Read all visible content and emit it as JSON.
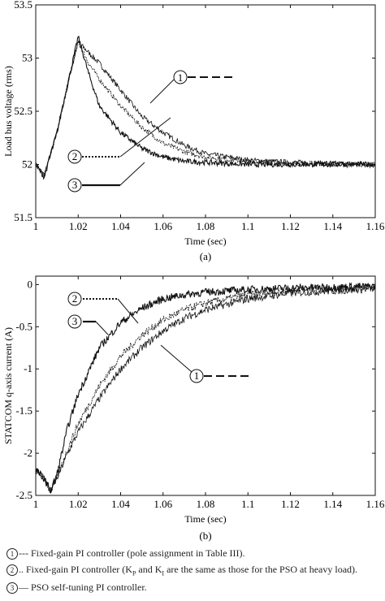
{
  "chart_data": [
    {
      "type": "line",
      "caption": "(a)",
      "xlabel": "Time (sec)",
      "ylabel": "Load bus voltage (rms)",
      "xlim": [
        1.0,
        1.16
      ],
      "ylim": [
        51.5,
        53.5
      ],
      "xticks": [
        "1",
        "1.02",
        "1.04",
        "1.06",
        "1.08",
        "1.1",
        "1.12",
        "1.14",
        "1.16"
      ],
      "yticks": [
        "51.5",
        "52",
        "52.5",
        "53",
        "53.5"
      ],
      "grid": false,
      "series": [
        {
          "name": "1",
          "x": [
            1.0,
            1.004,
            1.01,
            1.015,
            1.02,
            1.025,
            1.03,
            1.04,
            1.05,
            1.06,
            1.07,
            1.08,
            1.1,
            1.12,
            1.16
          ],
          "y": [
            52.0,
            51.9,
            52.3,
            52.75,
            53.15,
            53.05,
            52.95,
            52.7,
            52.45,
            52.3,
            52.18,
            52.1,
            52.04,
            52.02,
            52.0
          ]
        },
        {
          "name": "2",
          "x": [
            1.0,
            1.004,
            1.01,
            1.015,
            1.02,
            1.025,
            1.03,
            1.04,
            1.05,
            1.06,
            1.07,
            1.08,
            1.1,
            1.12,
            1.16
          ],
          "y": [
            52.0,
            51.9,
            52.3,
            52.75,
            53.15,
            52.95,
            52.8,
            52.55,
            52.35,
            52.2,
            52.12,
            52.07,
            52.03,
            52.01,
            52.0
          ]
        },
        {
          "name": "3",
          "x": [
            1.0,
            1.004,
            1.01,
            1.015,
            1.02,
            1.025,
            1.03,
            1.04,
            1.05,
            1.06,
            1.07,
            1.08,
            1.1,
            1.12,
            1.16
          ],
          "y": [
            52.0,
            51.88,
            52.3,
            52.75,
            53.2,
            52.85,
            52.55,
            52.3,
            52.15,
            52.07,
            52.03,
            52.02,
            52.0,
            52.0,
            52.0
          ]
        }
      ]
    },
    {
      "type": "line",
      "caption": "(b)",
      "xlabel": "Time (sec)",
      "ylabel": "STATCOM q-axis current (A)",
      "xlim": [
        1.0,
        1.16
      ],
      "ylim": [
        -2.5,
        0.1
      ],
      "xticks": [
        "1",
        "1.02",
        "1.04",
        "1.06",
        "1.08",
        "1.1",
        "1.12",
        "1.14",
        "1.16"
      ],
      "yticks": [
        "0",
        "-0.5",
        "-1",
        "-1.5",
        "-2",
        "-2.5"
      ],
      "grid": false,
      "series": [
        {
          "name": "1",
          "x": [
            1.0,
            1.004,
            1.007,
            1.01,
            1.015,
            1.02,
            1.03,
            1.04,
            1.05,
            1.06,
            1.07,
            1.08,
            1.1,
            1.12,
            1.16
          ],
          "y": [
            -2.2,
            -2.3,
            -2.45,
            -2.3,
            -2.0,
            -1.75,
            -1.35,
            -1.0,
            -0.75,
            -0.55,
            -0.4,
            -0.3,
            -0.17,
            -0.1,
            -0.05
          ]
        },
        {
          "name": "2",
          "x": [
            1.0,
            1.004,
            1.007,
            1.01,
            1.015,
            1.02,
            1.03,
            1.04,
            1.05,
            1.06,
            1.07,
            1.08,
            1.1,
            1.12,
            1.16
          ],
          "y": [
            -2.2,
            -2.3,
            -2.45,
            -2.3,
            -1.95,
            -1.65,
            -1.2,
            -0.85,
            -0.6,
            -0.42,
            -0.3,
            -0.22,
            -0.12,
            -0.07,
            -0.03
          ]
        },
        {
          "name": "3",
          "x": [
            1.0,
            1.004,
            1.007,
            1.01,
            1.015,
            1.02,
            1.03,
            1.04,
            1.05,
            1.06,
            1.07,
            1.08,
            1.1,
            1.12,
            1.16
          ],
          "y": [
            -2.2,
            -2.3,
            -2.45,
            -2.25,
            -1.7,
            -1.3,
            -0.75,
            -0.45,
            -0.28,
            -0.17,
            -0.12,
            -0.09,
            -0.06,
            -0.04,
            -0.02
          ]
        }
      ]
    }
  ],
  "legend": {
    "items": [
      {
        "num": "1",
        "text": "--- Fixed-gain PI controller (pole assignment in Table III)."
      },
      {
        "num": "2",
        "text": ".. Fixed-gain PI controller (K",
        "sub1": "P",
        "mid": " and K",
        "sub2": "I",
        "tail": " are the same as those for the PSO at heavy load)."
      },
      {
        "num": "3",
        "text": "— PSO self-tuning PI controller."
      }
    ]
  }
}
